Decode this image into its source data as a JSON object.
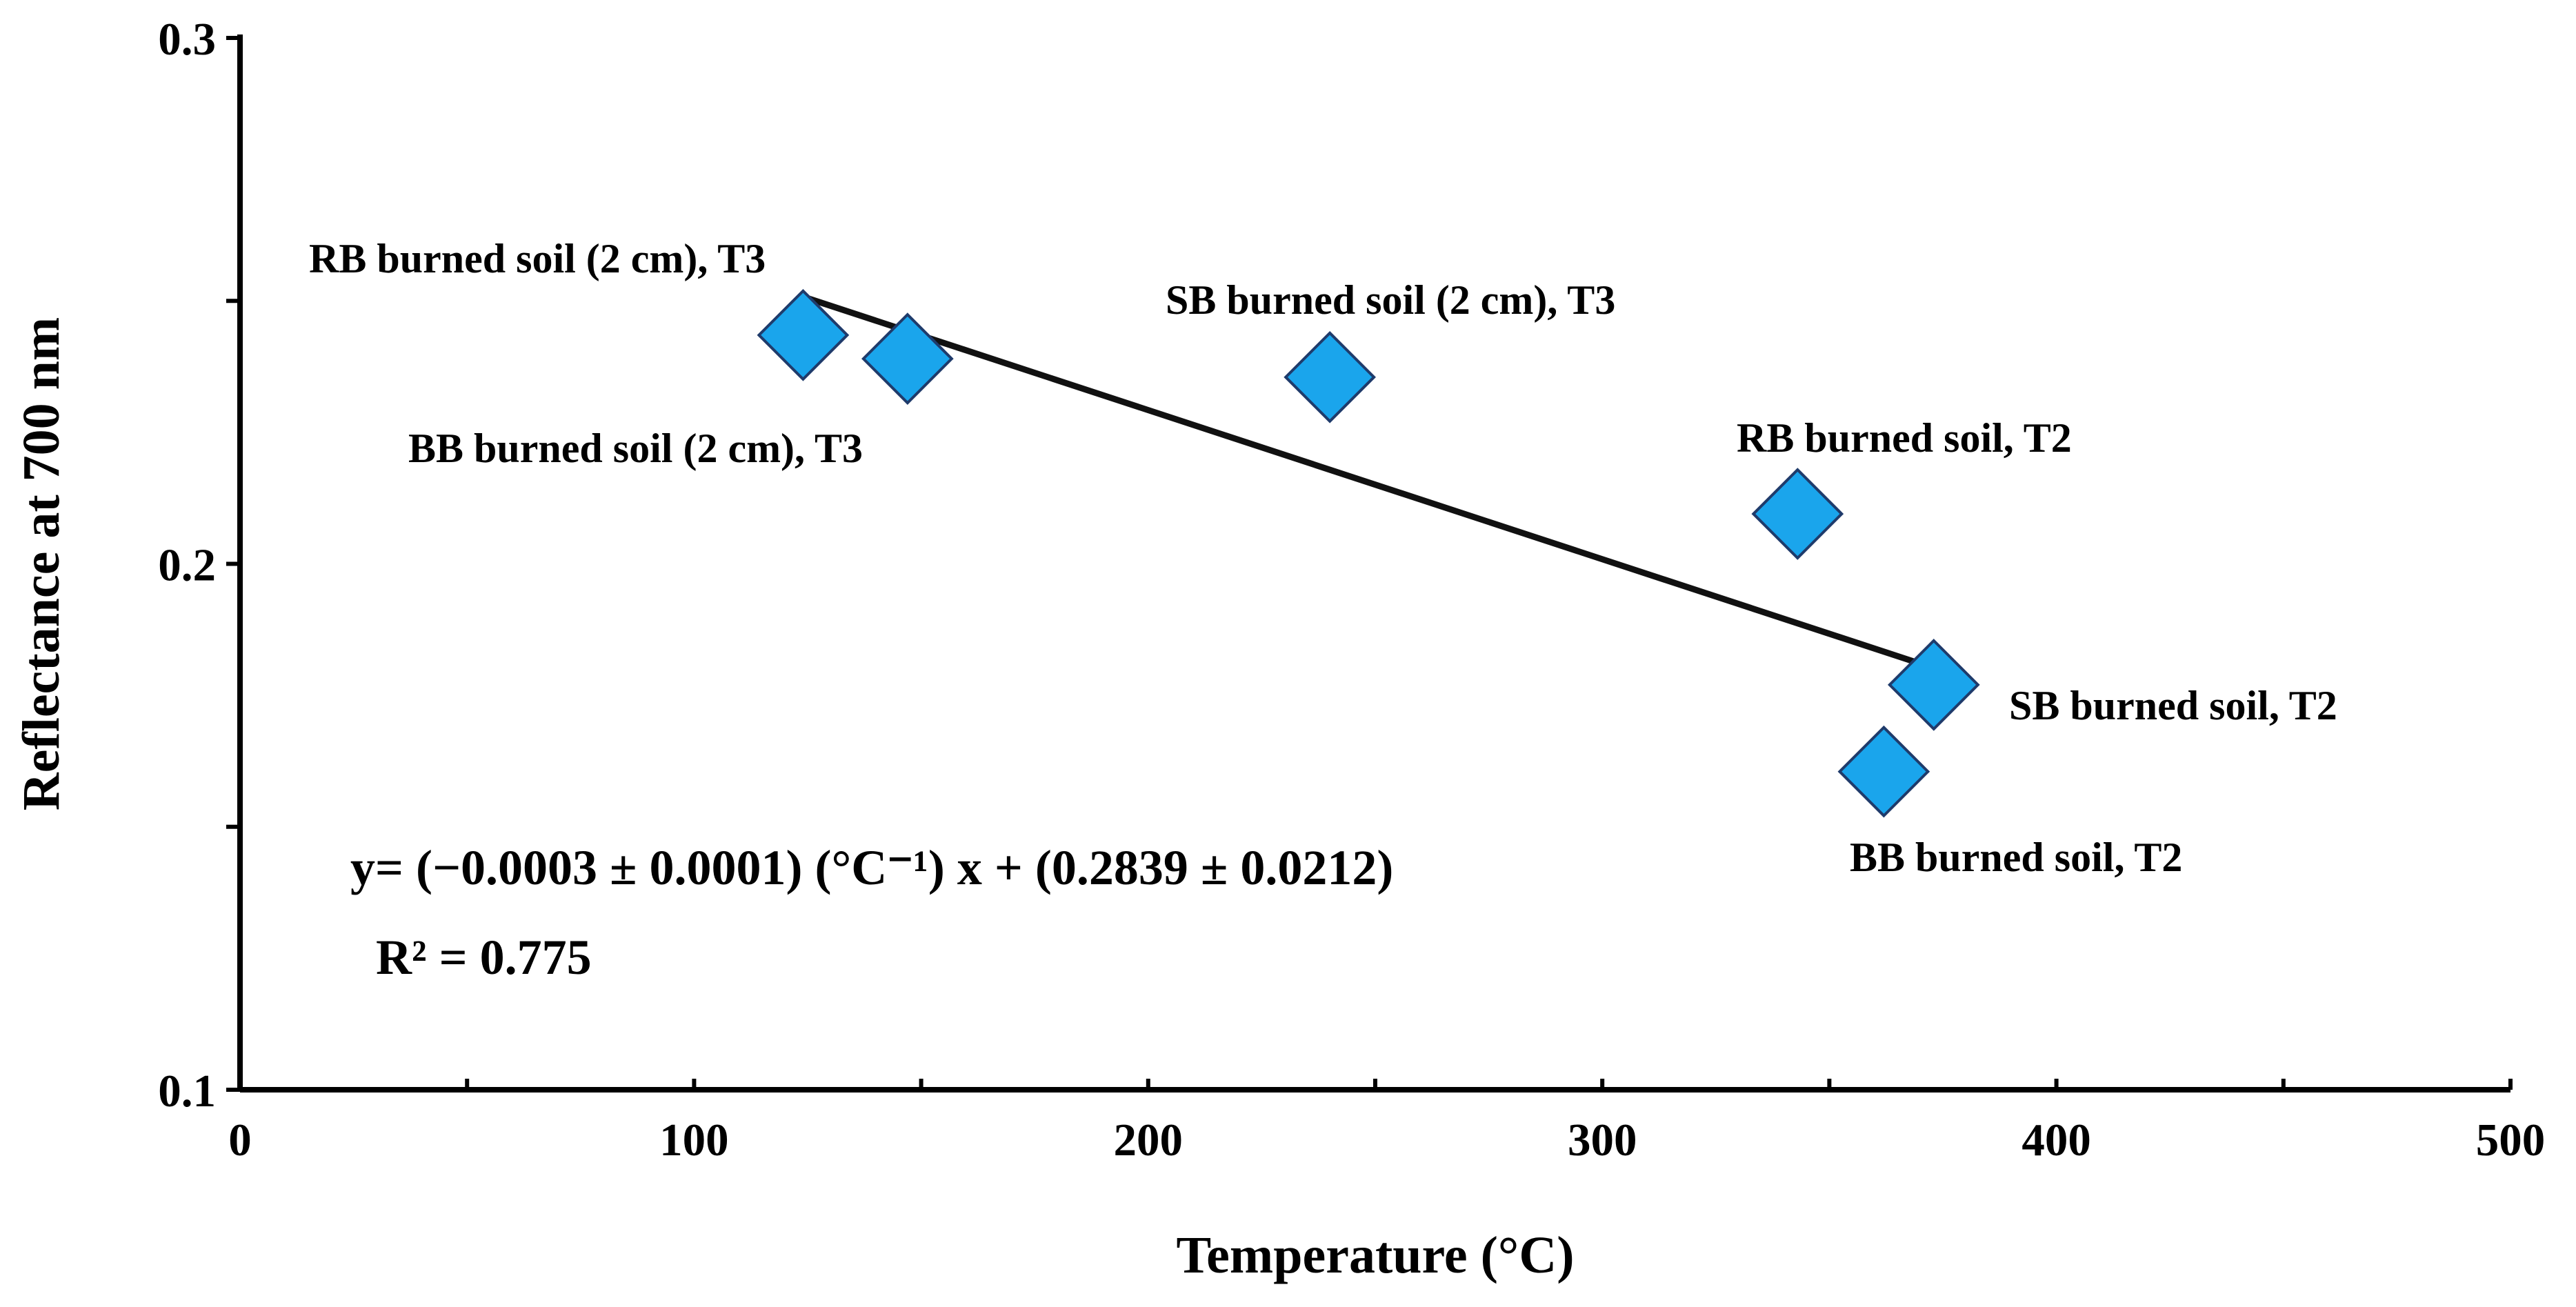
{
  "chart_data": {
    "type": "scatter",
    "title": "",
    "xlabel": "Temperature (°C)",
    "ylabel": "Reflectance at 700 nm",
    "xlim": [
      0,
      500
    ],
    "ylim": [
      0.1,
      0.3
    ],
    "x_ticks": [
      0,
      100,
      200,
      300,
      400,
      500
    ],
    "y_ticks": [
      0.1,
      0.15,
      0.2,
      0.25,
      0.3
    ],
    "x_tick_labels": [
      "0",
      "100",
      "200",
      "300",
      "400",
      "500"
    ],
    "y_tick_labels": [
      "0.1",
      "",
      "0.2",
      "",
      "0.3"
    ],
    "grid": false,
    "points": [
      {
        "label": "RB burned soil (2 cm), T3",
        "x": 124,
        "y": 0.2435
      },
      {
        "label": "BB burned soil (2 cm), T3",
        "x": 147,
        "y": 0.239
      },
      {
        "label": "SB burned soil (2 cm), T3",
        "x": 240,
        "y": 0.2355
      },
      {
        "label": "RB burned soil, T2",
        "x": 343,
        "y": 0.2095
      },
      {
        "label": "SB burned soil, T2",
        "x": 373,
        "y": 0.177
      },
      {
        "label": "BB burned soil, T2",
        "x": 362,
        "y": 0.1605
      }
    ],
    "trendline": {
      "x": [
        125,
        374
      ],
      "y": [
        0.2505,
        0.1799
      ]
    },
    "equation": "y= (−0.0003 ± 0.0001) (°C⁻¹) x + (0.2839 ± 0.0212)",
    "r_squared_label": "R² = 0.775"
  },
  "colors": {
    "marker_fill": "#1aa5ec",
    "marker_stroke": "#1f3b6b"
  }
}
